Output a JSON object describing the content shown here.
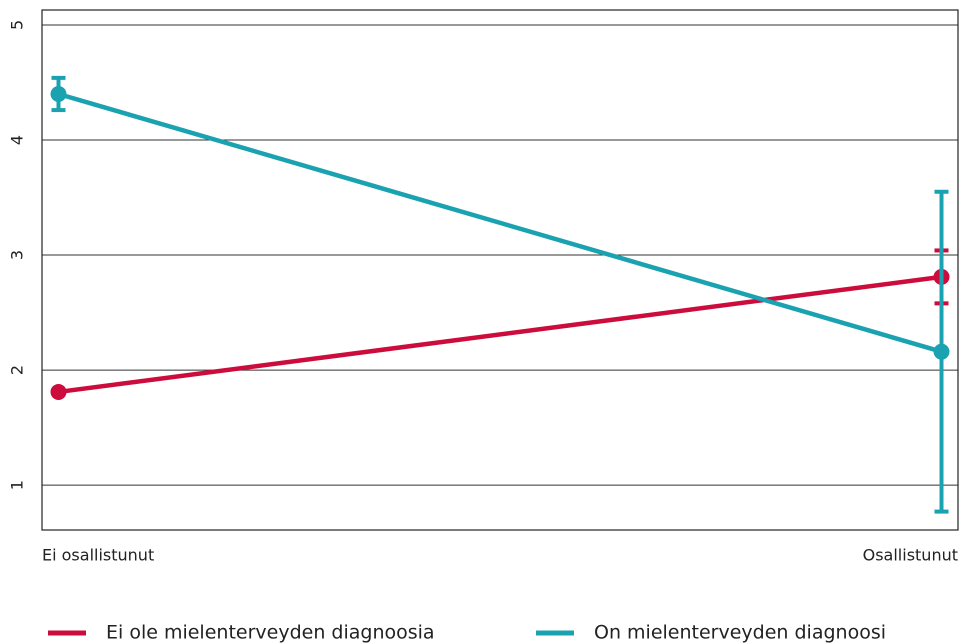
{
  "chart_data": {
    "type": "line",
    "categories": [
      "Ei osallistunut",
      "Osallistunut"
    ],
    "series": [
      {
        "name": "Ei ole mielenterveyden diagnoosia",
        "color": "#cc0c3c",
        "values": [
          1.81,
          2.81
        ],
        "errors": [
          0,
          0.23
        ]
      },
      {
        "name": "On mielenterveyden diagnoosi",
        "color": "#1aa2b0",
        "values": [
          4.4,
          2.16
        ],
        "errors": [
          0.14,
          1.39
        ]
      }
    ],
    "ylim": [
      0.61,
      5.13
    ],
    "yticks": [
      1,
      2,
      3,
      4,
      5
    ],
    "grid": true,
    "legend": "bottom"
  }
}
